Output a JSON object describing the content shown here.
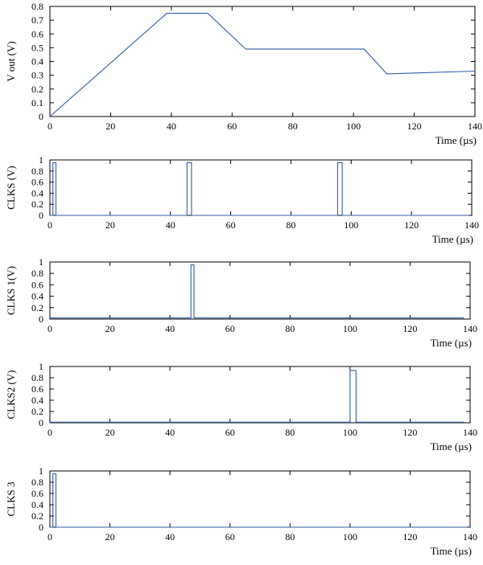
{
  "chart_data": [
    {
      "type": "line",
      "ylabel": "V out (V)",
      "xlabel": "Time (µs)",
      "xlim": [
        0,
        140
      ],
      "ylim": [
        0,
        0.8
      ],
      "xticks": [
        0,
        20,
        40,
        60,
        80,
        100,
        120,
        140
      ],
      "yticks": [
        0,
        0.1,
        0.2,
        0.3,
        0.4,
        0.5,
        0.6,
        0.7,
        0.8
      ],
      "color": "#2f5fa7",
      "series": [
        {
          "x": [
            0,
            38.5,
            52,
            64.5,
            103.5,
            111,
            140
          ],
          "y": [
            0.0,
            0.75,
            0.75,
            0.49,
            0.49,
            0.31,
            0.33
          ]
        }
      ]
    },
    {
      "type": "line",
      "ylabel": "CLKS (V)",
      "xlabel": "Time (µs)",
      "xlim": [
        0,
        140
      ],
      "ylim": [
        0,
        1
      ],
      "xticks": [
        0,
        20,
        40,
        60,
        80,
        100,
        120,
        140
      ],
      "yticks": [
        0,
        0.2,
        0.4,
        0.6,
        0.8,
        1
      ],
      "color": "#2f5fa7",
      "series": [
        {
          "x": [
            0,
            1,
            1,
            2,
            2,
            45.5,
            45.5,
            47,
            47,
            95.5,
            95.5,
            97,
            97,
            139
          ],
          "y": [
            0,
            0,
            0.95,
            0.95,
            0,
            0,
            0.95,
            0.95,
            0,
            0,
            0.95,
            0.95,
            0,
            0
          ]
        }
      ]
    },
    {
      "type": "line",
      "ylabel": "CLKS 1(V)",
      "xlabel": "Time (µs)",
      "xlim": [
        0,
        140
      ],
      "ylim": [
        0,
        1
      ],
      "xticks": [
        0,
        20,
        40,
        60,
        80,
        100,
        120,
        140
      ],
      "yticks": [
        0,
        0.2,
        0.4,
        0.6,
        0.8,
        1
      ],
      "color": "#2f5fa7",
      "series": [
        {
          "x": [
            0,
            47,
            47,
            48,
            48,
            138
          ],
          "y": [
            0.02,
            0.02,
            0.95,
            0.95,
            0.02,
            0.02
          ]
        }
      ]
    },
    {
      "type": "line",
      "ylabel": "CLKS2 (V)",
      "xlabel": "Time (µs)",
      "xlim": [
        0,
        140
      ],
      "ylim": [
        0,
        1
      ],
      "xticks": [
        0,
        20,
        40,
        60,
        80,
        100,
        120,
        140
      ],
      "yticks": [
        0,
        0.2,
        0.4,
        0.6,
        0.8,
        1
      ],
      "color": "#2f5fa7",
      "series": [
        {
          "x": [
            0,
            100,
            100,
            102,
            102,
            138
          ],
          "y": [
            0.01,
            0.01,
            0.93,
            0.93,
            0.01,
            0.01
          ]
        }
      ]
    },
    {
      "type": "line",
      "ylabel": "CLKS 3",
      "xlabel": "Time (µs)",
      "xlim": [
        0,
        140
      ],
      "ylim": [
        0,
        1
      ],
      "xticks": [
        0,
        20,
        40,
        60,
        80,
        100,
        120,
        140
      ],
      "yticks": [
        0,
        0.2,
        0.4,
        0.6,
        0.8,
        1
      ],
      "color": "#2f5fa7",
      "series": [
        {
          "x": [
            0,
            1,
            1,
            2,
            2,
            139
          ],
          "y": [
            0,
            0,
            0.95,
            0.95,
            0,
            0
          ]
        }
      ]
    }
  ]
}
